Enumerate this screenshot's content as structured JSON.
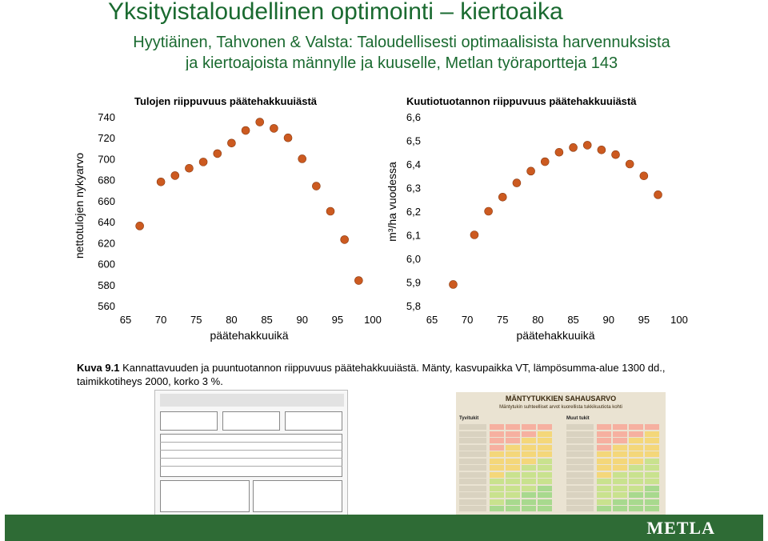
{
  "slide": {
    "title": "Yksityistaloudellinen optimointi – kiertoaika",
    "subtitle_line1": "Hyytiäinen, Tahvonen & Valsta: Taloudellisesti optimaalisista harvennuksista",
    "subtitle_line2": "ja kiertoajoista männylle ja kuuselle, Metlan työraportteja 143",
    "caption_label": "Kuva 9.1",
    "caption_text": " Kannattavuuden ja puuntuotannon riippuvuus päätehakkuuiästä. Mänty, kasvupaikka VT, lämpösumma-alue 1300 dd., taimikkotiheys 2000, korko 3 %.",
    "logo": "METLA",
    "table_thumb_title": "MÄNTYTUKKIEN SAHAUSARVO",
    "table_thumb_subtitle": "Mäntytukin suhteelliset arvot kuorellista tukkikuutiota kohti",
    "table_thumb_left_label": "Tyvitukit",
    "table_thumb_right_label": "Muut tukit",
    "colors": {
      "title_green": "#1a6a30",
      "footer_green": "#2e6b35",
      "marker": "#cc5a20"
    }
  },
  "chart_data": [
    {
      "type": "scatter",
      "title": "Tulojen riippuvuus päätehakkuuiästä",
      "xlabel": "päätehakkuuikä",
      "ylabel": "nettotulojen nykyarvo",
      "x": [
        65,
        70,
        75,
        80,
        85,
        90,
        95,
        100
      ],
      "ylim": [
        560,
        740
      ],
      "yticks": [
        560,
        580,
        600,
        620,
        640,
        660,
        680,
        700,
        720,
        740
      ],
      "points": [
        {
          "x": 67,
          "y": 636
        },
        {
          "x": 70,
          "y": 678
        },
        {
          "x": 72,
          "y": 684
        },
        {
          "x": 74,
          "y": 691
        },
        {
          "x": 76,
          "y": 697
        },
        {
          "x": 78,
          "y": 705
        },
        {
          "x": 80,
          "y": 715
        },
        {
          "x": 82,
          "y": 727
        },
        {
          "x": 84,
          "y": 735
        },
        {
          "x": 86,
          "y": 729
        },
        {
          "x": 88,
          "y": 720
        },
        {
          "x": 90,
          "y": 700
        },
        {
          "x": 92,
          "y": 674
        },
        {
          "x": 94,
          "y": 650
        },
        {
          "x": 96,
          "y": 623
        },
        {
          "x": 98,
          "y": 584
        }
      ]
    },
    {
      "type": "scatter",
      "title": "Kuutiotuotannon riippuvuus päätehakkuuiästä",
      "xlabel": "päätehakkuuikä",
      "ylabel": "m³/ha vuodessa",
      "x": [
        65,
        70,
        75,
        80,
        85,
        90,
        95,
        100
      ],
      "ylim": [
        5.8,
        6.6
      ],
      "yticks": [
        "5,8",
        "5,9",
        "6,0",
        "6,1",
        "6,2",
        "6,3",
        "6,4",
        "6,5",
        "6,6"
      ],
      "points": [
        {
          "x": 68,
          "y": 5.89
        },
        {
          "x": 71,
          "y": 6.1
        },
        {
          "x": 73,
          "y": 6.2
        },
        {
          "x": 75,
          "y": 6.26
        },
        {
          "x": 77,
          "y": 6.32
        },
        {
          "x": 79,
          "y": 6.37
        },
        {
          "x": 81,
          "y": 6.41
        },
        {
          "x": 83,
          "y": 6.45
        },
        {
          "x": 85,
          "y": 6.47
        },
        {
          "x": 87,
          "y": 6.48
        },
        {
          "x": 89,
          "y": 6.46
        },
        {
          "x": 91,
          "y": 6.44
        },
        {
          "x": 93,
          "y": 6.4
        },
        {
          "x": 95,
          "y": 6.35
        },
        {
          "x": 97,
          "y": 6.27
        }
      ]
    }
  ]
}
